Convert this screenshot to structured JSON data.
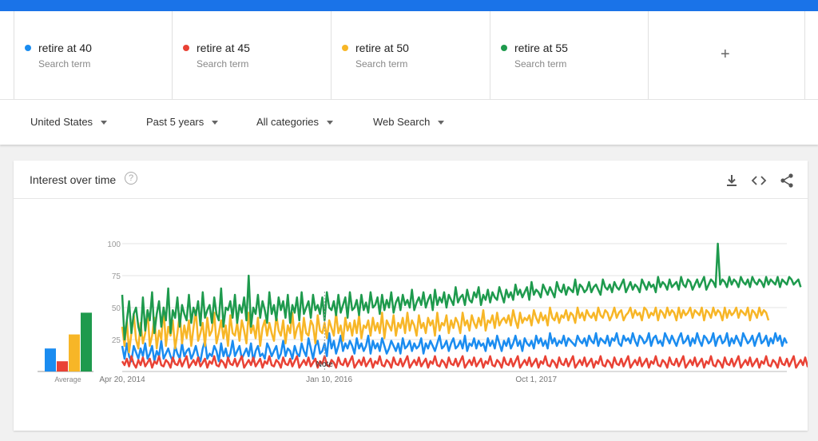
{
  "terms": [
    {
      "label": "retire at 40",
      "sub": "Search term",
      "color": "#1a8cf0"
    },
    {
      "label": "retire at 45",
      "sub": "Search term",
      "color": "#e94235"
    },
    {
      "label": "retire at 50",
      "sub": "Search term",
      "color": "#f7b627"
    },
    {
      "label": "retire at 55",
      "sub": "Search term",
      "color": "#1e9a4d"
    }
  ],
  "add_term": {
    "label": "+"
  },
  "filters": {
    "region": "United States",
    "time": "Past 5 years",
    "category": "All categories",
    "property": "Web Search"
  },
  "card": {
    "title": "Interest over time",
    "help": "?",
    "icons": [
      "download-icon",
      "embed-code-icon",
      "share-icon"
    ]
  },
  "chart_data": {
    "type": "line",
    "title": "Interest over time",
    "y_ticks": [
      100,
      75,
      50,
      25
    ],
    "ylim": [
      0,
      100
    ],
    "x_tick_labels": [
      "Apr 20, 2014",
      "Jan 10, 2016",
      "Oct 1, 2017"
    ],
    "x_tick_positions_week": [
      0,
      90,
      180
    ],
    "note_label": "Note",
    "note_week": 88,
    "average_label": "Average",
    "averages": [
      18,
      8,
      29,
      46
    ],
    "series": [
      {
        "name": "retire at 40",
        "color": "#1a8cf0",
        "values": [
          20,
          10,
          22,
          12,
          8,
          20,
          15,
          10,
          18,
          12,
          22,
          10,
          14,
          20,
          8,
          16,
          12,
          24,
          10,
          14,
          18,
          12,
          8,
          20,
          14,
          10,
          22,
          12,
          16,
          18,
          10,
          14,
          20,
          12,
          8,
          18,
          24,
          10,
          14,
          12,
          20,
          16,
          8,
          22,
          12,
          18,
          10,
          14,
          24,
          12,
          16,
          20,
          10,
          14,
          18,
          12,
          22,
          8,
          16,
          20,
          12,
          14,
          10,
          22,
          18,
          12,
          16,
          20,
          10,
          14,
          24,
          12,
          18,
          16,
          10,
          20,
          14,
          12,
          22,
          16,
          12,
          26,
          18,
          10,
          20,
          24,
          14,
          16,
          22,
          12,
          30,
          18,
          24,
          14,
          20,
          28,
          16,
          22,
          18,
          24,
          20,
          14,
          26,
          18,
          22,
          16,
          20,
          28,
          14,
          24,
          18,
          22,
          16,
          26,
          20,
          14,
          18,
          24,
          20,
          16,
          22,
          14,
          26,
          18,
          20,
          24,
          16,
          22,
          18,
          20,
          26,
          14,
          22,
          18,
          24,
          20,
          16,
          22,
          28,
          18,
          20,
          24,
          16,
          22,
          26,
          18,
          20,
          24,
          18,
          28,
          16,
          22,
          20,
          26,
          18,
          24,
          20,
          22,
          16,
          26,
          20,
          24,
          18,
          28,
          22,
          16,
          24,
          20,
          26,
          18,
          22,
          28,
          20,
          24,
          16,
          26,
          22,
          20,
          24,
          18,
          28,
          22,
          26,
          20,
          24,
          18,
          30,
          22,
          26,
          20,
          24,
          22,
          28,
          20,
          26,
          24,
          22,
          20,
          28,
          24,
          22,
          26,
          20,
          28,
          24,
          22,
          30,
          20,
          26,
          24,
          22,
          28,
          20,
          26,
          24,
          30,
          22,
          20,
          28,
          24,
          26,
          22,
          30,
          24,
          20,
          28,
          26,
          22,
          24,
          30,
          20,
          26,
          28,
          22,
          24,
          20,
          30,
          26,
          22,
          28,
          24,
          20,
          26,
          30,
          22,
          24,
          28,
          20,
          26,
          22,
          30,
          24,
          20,
          28,
          26,
          22,
          24,
          30,
          20,
          26,
          28,
          22,
          24,
          30,
          20,
          26,
          22,
          28,
          24,
          20,
          30,
          26,
          22,
          24,
          28,
          20,
          26,
          30,
          22,
          24,
          28,
          20,
          26,
          22,
          30,
          24,
          28,
          20,
          26,
          22
        ]
      },
      {
        "name": "retire at 45",
        "color": "#e94235",
        "values": [
          8,
          5,
          10,
          4,
          12,
          6,
          3,
          9,
          5,
          11,
          4,
          7,
          10,
          3,
          8,
          6,
          12,
          5,
          4,
          9,
          7,
          3,
          11,
          6,
          5,
          10,
          4,
          8,
          12,
          3,
          6,
          9,
          5,
          11,
          4,
          7,
          10,
          3,
          8,
          6,
          12,
          5,
          4,
          9,
          7,
          3,
          11,
          6,
          5,
          10,
          4,
          8,
          12,
          3,
          6,
          9,
          5,
          11,
          4,
          7,
          10,
          3,
          8,
          6,
          12,
          5,
          4,
          9,
          7,
          3,
          11,
          6,
          5,
          10,
          4,
          8,
          12,
          3,
          6,
          9,
          5,
          11,
          4,
          7,
          10,
          3,
          8,
          6,
          12,
          5,
          4,
          9,
          7,
          3,
          11,
          6,
          5,
          10,
          4,
          8,
          12,
          3,
          6,
          9,
          5,
          11,
          4,
          7,
          10,
          3,
          8,
          6,
          12,
          5,
          4,
          9,
          7,
          3,
          11,
          6,
          5,
          10,
          4,
          8,
          12,
          3,
          6,
          9,
          5,
          11,
          4,
          7,
          10,
          3,
          8,
          6,
          12,
          5,
          4,
          9,
          7,
          3,
          11,
          6,
          5,
          10,
          4,
          8,
          12,
          3,
          6,
          9,
          5,
          11,
          4,
          7,
          10,
          3,
          8,
          6,
          12,
          5,
          4,
          9,
          7,
          3,
          11,
          6,
          5,
          10,
          4,
          8,
          12,
          3,
          6,
          9,
          5,
          11,
          4,
          7,
          10,
          3,
          8,
          6,
          12,
          5,
          4,
          9,
          7,
          3,
          11,
          6,
          5,
          10,
          4,
          8,
          12,
          3,
          6,
          9,
          5,
          11,
          4,
          7,
          10,
          3,
          8,
          6,
          12,
          5,
          4,
          9,
          7,
          3,
          11,
          6,
          5,
          10,
          4,
          8,
          12,
          3,
          6,
          9,
          5,
          11,
          4,
          7,
          10,
          3,
          8,
          6,
          12,
          5,
          4,
          9,
          7,
          3,
          11,
          6,
          5,
          10,
          4,
          8,
          12,
          3,
          6,
          9,
          5,
          11,
          4,
          7,
          10,
          3,
          8,
          6,
          12,
          5,
          4,
          9,
          7,
          3,
          11,
          6,
          5,
          10,
          4,
          8,
          12,
          3,
          6,
          9,
          5,
          11,
          4,
          7,
          10,
          3,
          8,
          6,
          12,
          5,
          4,
          9,
          7,
          3,
          11,
          6,
          5,
          10,
          4,
          8,
          12,
          3,
          6,
          9,
          5,
          11,
          4,
          7,
          10,
          3,
          8,
          18
        ]
      },
      {
        "name": "retire at 50",
        "color": "#f7b627",
        "values": [
          35,
          20,
          40,
          15,
          30,
          45,
          25,
          18,
          38,
          22,
          30,
          48,
          20,
          28,
          42,
          18,
          32,
          25,
          50,
          20,
          35,
          28,
          40,
          18,
          30,
          45,
          22,
          36,
          26,
          40,
          20,
          34,
          48,
          24,
          30,
          38,
          20,
          42,
          28,
          32,
          46,
          22,
          30,
          40,
          26,
          36,
          20,
          44,
          30,
          28,
          38,
          24,
          40,
          32,
          22,
          46,
          30,
          36,
          26,
          42,
          20,
          34,
          40,
          28,
          38,
          30,
          24,
          44,
          32,
          28,
          40,
          22,
          36,
          30,
          46,
          26,
          34,
          38,
          24,
          42,
          30,
          28,
          40,
          36,
          22,
          44,
          32,
          30,
          38,
          26,
          40,
          34,
          28,
          46,
          30,
          36,
          24,
          42,
          32,
          38,
          28,
          40,
          30,
          44,
          26,
          36,
          34,
          40,
          28,
          42,
          32,
          38,
          30,
          46,
          26,
          40,
          36,
          32,
          44,
          28,
          38,
          34,
          42,
          30,
          46,
          32,
          40,
          36,
          28,
          44,
          34,
          38,
          30,
          42,
          36,
          40,
          28,
          46,
          32,
          38,
          36,
          44,
          30,
          40,
          34,
          42,
          38,
          30,
          46,
          36,
          40,
          32,
          44,
          38,
          34,
          42,
          36,
          48,
          32,
          40,
          38,
          44,
          34,
          46,
          36,
          40,
          42,
          38,
          44,
          36,
          48,
          40,
          34,
          46,
          38,
          42,
          40,
          44,
          36,
          48,
          42,
          38,
          46,
          40,
          44,
          36,
          50,
          42,
          40,
          46,
          38,
          44,
          42,
          48,
          40,
          46,
          44,
          38,
          50,
          42,
          46,
          40,
          48,
          44,
          42,
          46,
          40,
          50,
          44,
          42,
          48,
          46,
          40,
          44,
          50,
          42,
          46,
          48,
          40,
          44,
          46,
          50,
          42,
          48,
          44,
          46,
          40,
          50,
          48,
          42,
          46,
          44,
          50,
          40,
          48,
          46,
          42,
          50,
          44,
          48,
          46,
          40,
          50,
          42,
          48,
          44,
          46,
          50,
          42,
          48,
          46,
          44,
          50,
          40,
          48,
          46,
          42,
          50,
          44,
          48,
          46,
          40,
          50,
          42,
          48,
          44,
          46,
          50,
          42,
          48,
          46,
          44,
          50,
          40,
          48,
          46,
          42,
          50,
          44,
          48,
          46,
          40
        ]
      },
      {
        "name": "retire at 55",
        "color": "#1e9a4d",
        "values": [
          60,
          25,
          40,
          55,
          30,
          45,
          50,
          35,
          28,
          58,
          32,
          48,
          40,
          62,
          30,
          45,
          55,
          35,
          50,
          40,
          65,
          30,
          48,
          42,
          58,
          35,
          52,
          45,
          40,
          60,
          38,
          50,
          44,
          55,
          36,
          62,
          42,
          48,
          52,
          38,
          58,
          45,
          40,
          65,
          35,
          50,
          48,
          55,
          42,
          60,
          38,
          52,
          46,
          58,
          40,
          75,
          35,
          50,
          45,
          60,
          42,
          55,
          48,
          38,
          62,
          45,
          52,
          40,
          58,
          48,
          55,
          42,
          60,
          38,
          52,
          46,
          58,
          40,
          62,
          45,
          50,
          55,
          42,
          60,
          48,
          52,
          45,
          58,
          40,
          62,
          50,
          48,
          55,
          44,
          60,
          46,
          52,
          58,
          42,
          62,
          48,
          50,
          56,
          44,
          60,
          48,
          54,
          46,
          62,
          50,
          52,
          58,
          45,
          60,
          48,
          56,
          50,
          62,
          46,
          54,
          58,
          48,
          60,
          52,
          56,
          50,
          64,
          48,
          54,
          58,
          52,
          62,
          50,
          56,
          60,
          48,
          64,
          52,
          58,
          54,
          62,
          50,
          60,
          56,
          52,
          66,
          54,
          58,
          60,
          52,
          64,
          56,
          54,
          62,
          58,
          66,
          52,
          60,
          56,
          64,
          54,
          62,
          58,
          56,
          66,
          60,
          54,
          64,
          58,
          62,
          56,
          68,
          60,
          64,
          58,
          62,
          66,
          56,
          70,
          60,
          64,
          62,
          58,
          68,
          64,
          60,
          66,
          62,
          58,
          70,
          64,
          62,
          68,
          60,
          66,
          64,
          62,
          72,
          60,
          68,
          66,
          62,
          64,
          70,
          62,
          66,
          68,
          64,
          60,
          72,
          66,
          64,
          68,
          62,
          70,
          66,
          64,
          68,
          72,
          62,
          66,
          70,
          64,
          68,
          66,
          62,
          72,
          68,
          64,
          70,
          66,
          68,
          62,
          74,
          66,
          70,
          68,
          64,
          72,
          66,
          68,
          70,
          64,
          74,
          68,
          66,
          72,
          70,
          64,
          68,
          72,
          66,
          70,
          74,
          64,
          68,
          72,
          70,
          66,
          100,
          68,
          72,
          70,
          66,
          74,
          68,
          72,
          70,
          66,
          74,
          70,
          68,
          72,
          66,
          74,
          70,
          68,
          72,
          70,
          66,
          74,
          68,
          72,
          70,
          68,
          74,
          66,
          72,
          70,
          68,
          74,
          72,
          68,
          70,
          72,
          66
        ]
      }
    ]
  }
}
